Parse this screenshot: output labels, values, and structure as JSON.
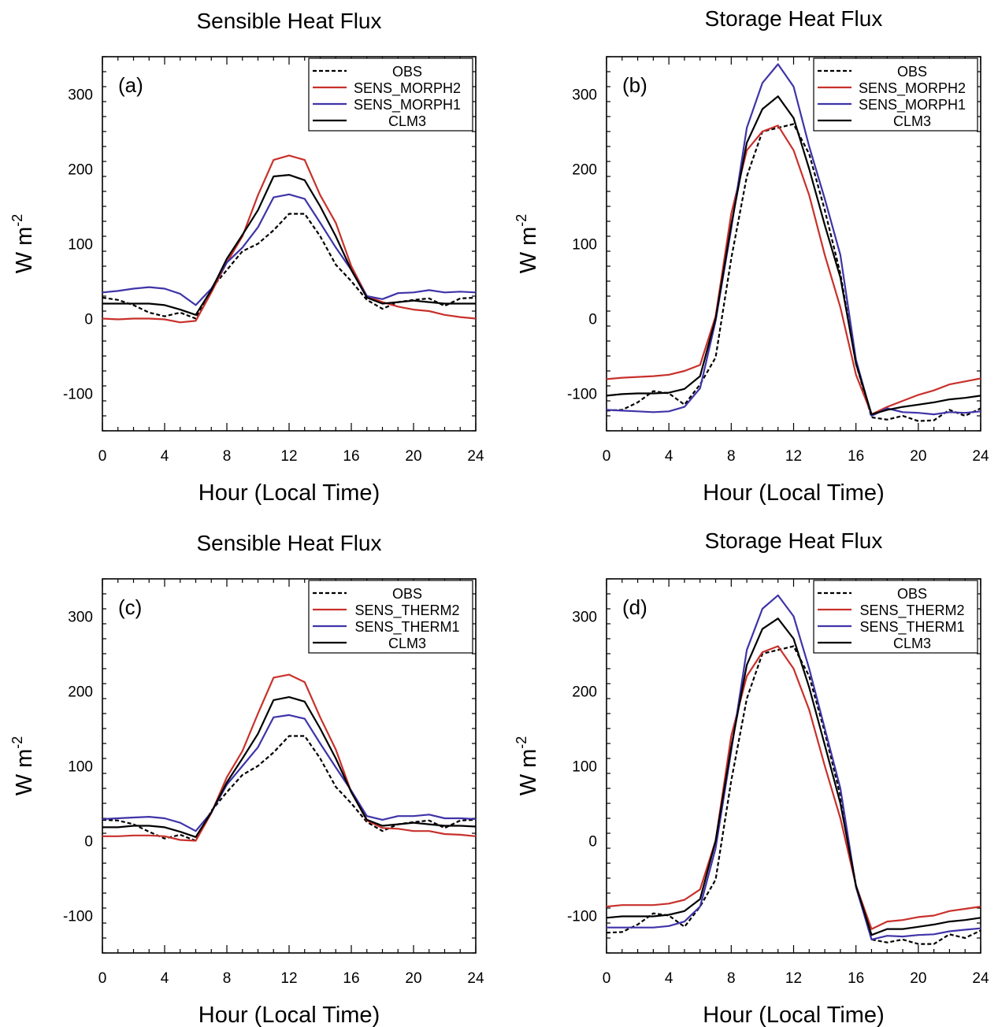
{
  "chart_data": [
    {
      "type": "line",
      "title": "Sensible Heat Flux",
      "panel_label": "(a)",
      "xlabel": "Hour (Local Time)",
      "ylabel": "W m",
      "ylabel_sup": "-2",
      "xlim": [
        0,
        24
      ],
      "ylim": [
        -150,
        350
      ],
      "xticks": [
        0,
        4,
        8,
        12,
        16,
        20,
        24
      ],
      "yticks": [
        -100,
        0,
        100,
        200,
        300
      ],
      "legend_position": "top-right",
      "x": [
        0,
        1,
        2,
        3,
        4,
        5,
        6,
        7,
        8,
        9,
        10,
        11,
        12,
        13,
        14,
        15,
        16,
        17,
        18,
        19,
        20,
        21,
        22,
        23,
        24
      ],
      "series": [
        {
          "name": "OBS",
          "color": "#000000",
          "dash": true,
          "values": [
            28,
            25,
            18,
            8,
            3,
            8,
            0,
            40,
            65,
            90,
            100,
            118,
            140,
            140,
            110,
            72,
            50,
            25,
            13,
            22,
            25,
            27,
            17,
            27,
            28
          ]
        },
        {
          "name": "SENS_MORPH2",
          "color": "#c8312b",
          "dash": false,
          "values": [
            0,
            -1,
            0,
            0,
            -1,
            -5,
            -3,
            35,
            75,
            110,
            165,
            212,
            218,
            212,
            165,
            128,
            70,
            30,
            22,
            16,
            12,
            10,
            5,
            2,
            0
          ]
        },
        {
          "name": "SENS_MORPH1",
          "color": "#3f34a8",
          "dash": false,
          "values": [
            35,
            37,
            40,
            42,
            40,
            33,
            18,
            40,
            75,
            95,
            122,
            162,
            166,
            160,
            128,
            95,
            65,
            30,
            26,
            34,
            35,
            38,
            35,
            36,
            35
          ]
        },
        {
          "name": "CLM3",
          "color": "#000000",
          "dash": false,
          "values": [
            20,
            20,
            20,
            20,
            18,
            12,
            5,
            38,
            80,
            112,
            145,
            190,
            192,
            185,
            150,
            110,
            65,
            28,
            20,
            22,
            24,
            22,
            20,
            20,
            20
          ]
        }
      ]
    },
    {
      "type": "line",
      "title": "Storage Heat Flux",
      "panel_label": "(b)",
      "xlabel": "Hour (Local Time)",
      "ylabel": "W m",
      "ylabel_sup": "-2",
      "xlim": [
        0,
        24
      ],
      "ylim": [
        -150,
        350
      ],
      "xticks": [
        0,
        4,
        8,
        12,
        16,
        20,
        24
      ],
      "yticks": [
        -100,
        0,
        100,
        200,
        300
      ],
      "legend_position": "top-right",
      "x": [
        0,
        1,
        2,
        3,
        4,
        5,
        6,
        7,
        8,
        9,
        10,
        11,
        12,
        13,
        14,
        15,
        16,
        17,
        18,
        19,
        20,
        21,
        22,
        23,
        24
      ],
      "series": [
        {
          "name": "OBS",
          "color": "#000000",
          "dash": true,
          "values": [
            -123,
            -122,
            -112,
            -97,
            -100,
            -115,
            -88,
            -52,
            80,
            190,
            250,
            255,
            260,
            220,
            145,
            60,
            -60,
            -132,
            -135,
            -130,
            -137,
            -136,
            -122,
            -130,
            -120
          ]
        },
        {
          "name": "SENS_MORPH2",
          "color": "#c8312b",
          "dash": false,
          "values": [
            -81,
            -79,
            -78,
            -77,
            -75,
            -70,
            -62,
            3,
            140,
            225,
            250,
            258,
            225,
            165,
            85,
            15,
            -75,
            -128,
            -118,
            -110,
            -102,
            -96,
            -88,
            -84,
            -80
          ]
        },
        {
          "name": "SENS_MORPH1",
          "color": "#3f34a8",
          "dash": false,
          "values": [
            -122,
            -123,
            -124,
            -125,
            -124,
            -118,
            -93,
            -3,
            120,
            255,
            315,
            340,
            310,
            230,
            160,
            85,
            -55,
            -130,
            -120,
            -125,
            -126,
            -128,
            -125,
            -126,
            -124
          ]
        },
        {
          "name": "CLM3",
          "color": "#000000",
          "dash": false,
          "values": [
            -103,
            -101,
            -100,
            -100,
            -99,
            -94,
            -77,
            0,
            125,
            235,
            280,
            297,
            268,
            200,
            125,
            55,
            -60,
            -128,
            -122,
            -118,
            -115,
            -112,
            -108,
            -106,
            -103
          ]
        }
      ]
    },
    {
      "type": "line",
      "title": "Sensible Heat Flux",
      "panel_label": "(c)",
      "xlabel": "Hour (Local Time)",
      "ylabel": "W m",
      "ylabel_sup": "-2",
      "xlim": [
        0,
        24
      ],
      "ylim": [
        -150,
        350
      ],
      "xticks": [
        0,
        4,
        8,
        12,
        16,
        20,
        24
      ],
      "yticks": [
        -100,
        0,
        100,
        200,
        300
      ],
      "legend_position": "top-right",
      "x": [
        0,
        1,
        2,
        3,
        4,
        5,
        6,
        7,
        8,
        9,
        10,
        11,
        12,
        13,
        14,
        15,
        16,
        17,
        18,
        19,
        20,
        21,
        22,
        23,
        24
      ],
      "series": [
        {
          "name": "OBS",
          "color": "#000000",
          "dash": true,
          "values": [
            28,
            27,
            22,
            12,
            3,
            8,
            0,
            40,
            65,
            88,
            100,
            118,
            140,
            140,
            110,
            72,
            50,
            25,
            13,
            22,
            25,
            27,
            17,
            27,
            28
          ]
        },
        {
          "name": "SENS_THERM2",
          "color": "#c8312b",
          "dash": false,
          "values": [
            6,
            6,
            7,
            7,
            6,
            1,
            0,
            37,
            85,
            120,
            170,
            218,
            222,
            212,
            165,
            122,
            65,
            27,
            17,
            16,
            13,
            13,
            9,
            8,
            6
          ]
        },
        {
          "name": "SENS_THERM1",
          "color": "#3f34a8",
          "dash": false,
          "values": [
            29,
            30,
            31,
            32,
            30,
            24,
            13,
            38,
            75,
            100,
            125,
            165,
            168,
            163,
            130,
            98,
            67,
            33,
            28,
            33,
            33,
            35,
            30,
            30,
            29
          ]
        },
        {
          "name": "CLM3",
          "color": "#000000",
          "dash": false,
          "values": [
            18,
            18,
            20,
            20,
            18,
            12,
            5,
            38,
            78,
            110,
            143,
            188,
            192,
            186,
            150,
            110,
            65,
            28,
            20,
            22,
            24,
            22,
            20,
            20,
            19
          ]
        }
      ]
    },
    {
      "type": "line",
      "title": "Storage Heat Flux",
      "panel_label": "(d)",
      "xlabel": "Hour (Local Time)",
      "ylabel": "W m",
      "ylabel_sup": "-2",
      "xlim": [
        0,
        24
      ],
      "ylim": [
        -150,
        350
      ],
      "xticks": [
        0,
        4,
        8,
        12,
        16,
        20,
        24
      ],
      "yticks": [
        -100,
        0,
        100,
        200,
        300
      ],
      "legend_position": "top-right",
      "x": [
        0,
        1,
        2,
        3,
        4,
        5,
        6,
        7,
        8,
        9,
        10,
        11,
        12,
        13,
        14,
        15,
        16,
        17,
        18,
        19,
        20,
        21,
        22,
        23,
        24
      ],
      "series": [
        {
          "name": "OBS",
          "color": "#000000",
          "dash": true,
          "values": [
            -123,
            -122,
            -112,
            -97,
            -100,
            -115,
            -88,
            -52,
            80,
            190,
            250,
            255,
            260,
            220,
            145,
            60,
            -60,
            -132,
            -136,
            -132,
            -138,
            -138,
            -125,
            -130,
            -120
          ]
        },
        {
          "name": "SENS_THERM2",
          "color": "#c8312b",
          "dash": false,
          "values": [
            -88,
            -86,
            -86,
            -86,
            -84,
            -79,
            -65,
            0,
            140,
            220,
            252,
            260,
            230,
            175,
            100,
            30,
            -60,
            -118,
            -108,
            -106,
            -102,
            -100,
            -94,
            -91,
            -88
          ]
        },
        {
          "name": "SENS_THERM1",
          "color": "#3f34a8",
          "dash": false,
          "values": [
            -116,
            -116,
            -116,
            -116,
            -114,
            -108,
            -88,
            -10,
            120,
            255,
            310,
            328,
            300,
            230,
            150,
            70,
            -62,
            -132,
            -127,
            -128,
            -126,
            -125,
            -121,
            -119,
            -117
          ]
        },
        {
          "name": "CLM3",
          "color": "#000000",
          "dash": false,
          "values": [
            -103,
            -101,
            -101,
            -101,
            -99,
            -94,
            -78,
            0,
            125,
            235,
            283,
            297,
            270,
            205,
            128,
            50,
            -60,
            -126,
            -118,
            -118,
            -115,
            -112,
            -108,
            -106,
            -103
          ]
        }
      ]
    }
  ]
}
